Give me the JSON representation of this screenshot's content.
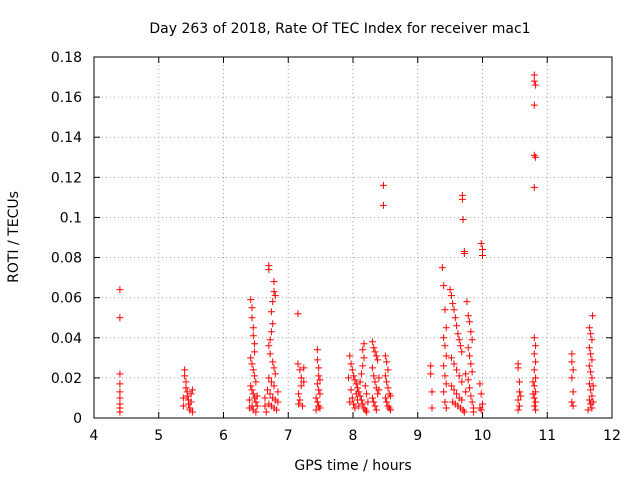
{
  "chart_data": {
    "type": "scatter",
    "title": "Day 263 of 2018, Rate Of TEC Index for receiver mac1",
    "xlabel": "GPS time / hours",
    "ylabel": "ROTI / TECUs",
    "xlim": [
      4,
      12
    ],
    "ylim": [
      0,
      0.18
    ],
    "xticks": [
      "4",
      "5",
      "6",
      "7",
      "8",
      "9",
      "10",
      "11",
      "12"
    ],
    "yticks": [
      "0",
      "0.02",
      "0.04",
      "0.06",
      "0.08",
      "0.1",
      "0.12",
      "0.14",
      "0.16",
      "0.18"
    ],
    "grid": true,
    "marker": "+",
    "color": "#ff0000",
    "series": [
      {
        "name": "ROTI",
        "points": [
          [
            4.4,
            0.064
          ],
          [
            4.4,
            0.05
          ],
          [
            4.4,
            0.022
          ],
          [
            4.4,
            0.017
          ],
          [
            4.4,
            0.013
          ],
          [
            4.4,
            0.01
          ],
          [
            4.4,
            0.007
          ],
          [
            4.4,
            0.005
          ],
          [
            4.4,
            0.003
          ],
          [
            5.4,
            0.024
          ],
          [
            5.4,
            0.021
          ],
          [
            5.42,
            0.018
          ],
          [
            5.42,
            0.015
          ],
          [
            5.44,
            0.013
          ],
          [
            5.44,
            0.011
          ],
          [
            5.46,
            0.009
          ],
          [
            5.46,
            0.007
          ],
          [
            5.48,
            0.005
          ],
          [
            5.48,
            0.004
          ],
          [
            5.5,
            0.012
          ],
          [
            5.5,
            0.008
          ],
          [
            5.38,
            0.01
          ],
          [
            5.38,
            0.006
          ],
          [
            5.52,
            0.014
          ],
          [
            5.52,
            0.003
          ],
          [
            6.42,
            0.059
          ],
          [
            6.44,
            0.055
          ],
          [
            6.44,
            0.05
          ],
          [
            6.46,
            0.045
          ],
          [
            6.46,
            0.041
          ],
          [
            6.48,
            0.037
          ],
          [
            6.48,
            0.033
          ],
          [
            6.42,
            0.03
          ],
          [
            6.44,
            0.027
          ],
          [
            6.46,
            0.024
          ],
          [
            6.48,
            0.021
          ],
          [
            6.5,
            0.018
          ],
          [
            6.42,
            0.016
          ],
          [
            6.44,
            0.014
          ],
          [
            6.46,
            0.012
          ],
          [
            6.48,
            0.01
          ],
          [
            6.5,
            0.008
          ],
          [
            6.44,
            0.006
          ],
          [
            6.46,
            0.004
          ],
          [
            6.5,
            0.003
          ],
          [
            6.52,
            0.011
          ],
          [
            6.52,
            0.006
          ],
          [
            6.4,
            0.009
          ],
          [
            6.4,
            0.005
          ],
          [
            6.7,
            0.076
          ],
          [
            6.7,
            0.074
          ],
          [
            6.78,
            0.068
          ],
          [
            6.78,
            0.063
          ],
          [
            6.8,
            0.061
          ],
          [
            6.76,
            0.058
          ],
          [
            6.74,
            0.053
          ],
          [
            6.76,
            0.047
          ],
          [
            6.74,
            0.043
          ],
          [
            6.72,
            0.039
          ],
          [
            6.7,
            0.036
          ],
          [
            6.72,
            0.032
          ],
          [
            6.76,
            0.028
          ],
          [
            6.78,
            0.025
          ],
          [
            6.8,
            0.022
          ],
          [
            6.7,
            0.02
          ],
          [
            6.74,
            0.018
          ],
          [
            6.78,
            0.016
          ],
          [
            6.68,
            0.014
          ],
          [
            6.72,
            0.012
          ],
          [
            6.76,
            0.01
          ],
          [
            6.8,
            0.009
          ],
          [
            6.7,
            0.007
          ],
          [
            6.74,
            0.006
          ],
          [
            6.78,
            0.005
          ],
          [
            6.82,
            0.004
          ],
          [
            6.66,
            0.003
          ],
          [
            6.84,
            0.013
          ],
          [
            6.84,
            0.008
          ],
          [
            6.64,
            0.01
          ],
          [
            6.64,
            0.006
          ],
          [
            7.15,
            0.052
          ],
          [
            7.15,
            0.027
          ],
          [
            7.18,
            0.024
          ],
          [
            7.2,
            0.02
          ],
          [
            7.2,
            0.016
          ],
          [
            7.16,
            0.012
          ],
          [
            7.18,
            0.009
          ],
          [
            7.16,
            0.007
          ],
          [
            7.22,
            0.006
          ],
          [
            7.24,
            0.025
          ],
          [
            7.24,
            0.018
          ],
          [
            7.45,
            0.034
          ],
          [
            7.45,
            0.029
          ],
          [
            7.47,
            0.025
          ],
          [
            7.47,
            0.021
          ],
          [
            7.49,
            0.019
          ],
          [
            7.45,
            0.017
          ],
          [
            7.47,
            0.014
          ],
          [
            7.49,
            0.012
          ],
          [
            7.43,
            0.01
          ],
          [
            7.45,
            0.008
          ],
          [
            7.47,
            0.006
          ],
          [
            7.49,
            0.005
          ],
          [
            7.43,
            0.004
          ],
          [
            7.95,
            0.031
          ],
          [
            7.97,
            0.027
          ],
          [
            7.99,
            0.024
          ],
          [
            8.01,
            0.021
          ],
          [
            8.03,
            0.019
          ],
          [
            8.05,
            0.017
          ],
          [
            8.07,
            0.015
          ],
          [
            8.09,
            0.013
          ],
          [
            8.11,
            0.011
          ],
          [
            8.13,
            0.009
          ],
          [
            8.15,
            0.007
          ],
          [
            8.17,
            0.005
          ],
          [
            8.19,
            0.004
          ],
          [
            8.21,
            0.003
          ],
          [
            7.97,
            0.014
          ],
          [
            7.99,
            0.01
          ],
          [
            8.01,
            0.007
          ],
          [
            8.03,
            0.005
          ],
          [
            8.05,
            0.012
          ],
          [
            8.07,
            0.009
          ],
          [
            8.09,
            0.006
          ],
          [
            8.11,
            0.018
          ],
          [
            8.13,
            0.022
          ],
          [
            8.15,
            0.026
          ],
          [
            8.17,
            0.03
          ],
          [
            8.17,
            0.037
          ],
          [
            8.15,
            0.034
          ],
          [
            8.19,
            0.016
          ],
          [
            8.21,
            0.012
          ],
          [
            7.95,
            0.008
          ],
          [
            7.93,
            0.02
          ],
          [
            8.23,
            0.008
          ],
          [
            8.3,
            0.038
          ],
          [
            8.32,
            0.035
          ],
          [
            8.34,
            0.033
          ],
          [
            8.36,
            0.031
          ],
          [
            8.38,
            0.029
          ],
          [
            8.3,
            0.025
          ],
          [
            8.32,
            0.021
          ],
          [
            8.34,
            0.018
          ],
          [
            8.36,
            0.015
          ],
          [
            8.38,
            0.012
          ],
          [
            8.3,
            0.01
          ],
          [
            8.32,
            0.008
          ],
          [
            8.34,
            0.006
          ],
          [
            8.36,
            0.004
          ],
          [
            8.4,
            0.02
          ],
          [
            8.4,
            0.014
          ],
          [
            8.47,
            0.116
          ],
          [
            8.47,
            0.106
          ],
          [
            8.5,
            0.031
          ],
          [
            8.52,
            0.028
          ],
          [
            8.54,
            0.024
          ],
          [
            8.5,
            0.021
          ],
          [
            8.52,
            0.018
          ],
          [
            8.54,
            0.015
          ],
          [
            8.56,
            0.012
          ],
          [
            8.5,
            0.01
          ],
          [
            8.52,
            0.008
          ],
          [
            8.54,
            0.006
          ],
          [
            8.56,
            0.005
          ],
          [
            8.58,
            0.004
          ],
          [
            8.58,
            0.011
          ],
          [
            9.2,
            0.026
          ],
          [
            9.2,
            0.022
          ],
          [
            9.22,
            0.013
          ],
          [
            9.22,
            0.005
          ],
          [
            9.38,
            0.075
          ],
          [
            9.4,
            0.066
          ],
          [
            9.42,
            0.054
          ],
          [
            9.44,
            0.045
          ],
          [
            9.4,
            0.04
          ],
          [
            9.42,
            0.036
          ],
          [
            9.44,
            0.031
          ],
          [
            9.4,
            0.026
          ],
          [
            9.42,
            0.021
          ],
          [
            9.44,
            0.017
          ],
          [
            9.4,
            0.013
          ],
          [
            9.42,
            0.008
          ],
          [
            9.44,
            0.005
          ],
          [
            9.5,
            0.064
          ],
          [
            9.52,
            0.061
          ],
          [
            9.54,
            0.057
          ],
          [
            9.56,
            0.054
          ],
          [
            9.58,
            0.05
          ],
          [
            9.6,
            0.046
          ],
          [
            9.62,
            0.042
          ],
          [
            9.64,
            0.039
          ],
          [
            9.66,
            0.036
          ],
          [
            9.68,
            0.033
          ],
          [
            9.52,
            0.03
          ],
          [
            9.56,
            0.027
          ],
          [
            9.6,
            0.024
          ],
          [
            9.64,
            0.021
          ],
          [
            9.68,
            0.018
          ],
          [
            9.52,
            0.016
          ],
          [
            9.56,
            0.014
          ],
          [
            9.6,
            0.012
          ],
          [
            9.64,
            0.01
          ],
          [
            9.68,
            0.009
          ],
          [
            9.54,
            0.008
          ],
          [
            9.58,
            0.007
          ],
          [
            9.62,
            0.006
          ],
          [
            9.66,
            0.005
          ],
          [
            9.7,
            0.004
          ],
          [
            9.72,
            0.003
          ],
          [
            9.74,
            0.013
          ],
          [
            9.74,
            0.022
          ],
          [
            9.69,
            0.111
          ],
          [
            9.69,
            0.109
          ],
          [
            9.7,
            0.099
          ],
          [
            9.72,
            0.083
          ],
          [
            9.72,
            0.082
          ],
          [
            9.76,
            0.058
          ],
          [
            9.78,
            0.051
          ],
          [
            9.8,
            0.048
          ],
          [
            9.82,
            0.043
          ],
          [
            9.84,
            0.039
          ],
          [
            9.78,
            0.035
          ],
          [
            9.8,
            0.031
          ],
          [
            9.82,
            0.027
          ],
          [
            9.84,
            0.023
          ],
          [
            9.78,
            0.019
          ],
          [
            9.8,
            0.015
          ],
          [
            9.82,
            0.011
          ],
          [
            9.84,
            0.008
          ],
          [
            9.86,
            0.005
          ],
          [
            9.86,
            0.003
          ],
          [
            9.98,
            0.087
          ],
          [
            10.0,
            0.084
          ],
          [
            10.0,
            0.081
          ],
          [
            9.96,
            0.017
          ],
          [
            9.98,
            0.012
          ],
          [
            10.0,
            0.007
          ],
          [
            9.96,
            0.005
          ],
          [
            9.98,
            0.004
          ],
          [
            10.55,
            0.027
          ],
          [
            10.55,
            0.025
          ],
          [
            10.57,
            0.018
          ],
          [
            10.57,
            0.013
          ],
          [
            10.55,
            0.009
          ],
          [
            10.57,
            0.006
          ],
          [
            10.55,
            0.004
          ],
          [
            10.59,
            0.011
          ],
          [
            10.8,
            0.171
          ],
          [
            10.8,
            0.168
          ],
          [
            10.82,
            0.166
          ],
          [
            10.8,
            0.156
          ],
          [
            10.8,
            0.131
          ],
          [
            10.82,
            0.13
          ],
          [
            10.8,
            0.115
          ],
          [
            10.8,
            0.04
          ],
          [
            10.82,
            0.036
          ],
          [
            10.8,
            0.032
          ],
          [
            10.82,
            0.028
          ],
          [
            10.8,
            0.024
          ],
          [
            10.82,
            0.02
          ],
          [
            10.8,
            0.016
          ],
          [
            10.82,
            0.013
          ],
          [
            10.8,
            0.01
          ],
          [
            10.82,
            0.008
          ],
          [
            10.8,
            0.006
          ],
          [
            10.82,
            0.004
          ],
          [
            10.78,
            0.018
          ],
          [
            10.78,
            0.012
          ],
          [
            11.38,
            0.032
          ],
          [
            11.38,
            0.028
          ],
          [
            11.4,
            0.024
          ],
          [
            11.38,
            0.02
          ],
          [
            11.4,
            0.013
          ],
          [
            11.38,
            0.008
          ],
          [
            11.4,
            0.006
          ],
          [
            11.65,
            0.045
          ],
          [
            11.67,
            0.042
          ],
          [
            11.69,
            0.039
          ],
          [
            11.7,
            0.051
          ],
          [
            11.65,
            0.035
          ],
          [
            11.67,
            0.032
          ],
          [
            11.69,
            0.029
          ],
          [
            11.65,
            0.026
          ],
          [
            11.67,
            0.023
          ],
          [
            11.69,
            0.02
          ],
          [
            11.65,
            0.017
          ],
          [
            11.67,
            0.014
          ],
          [
            11.69,
            0.011
          ],
          [
            11.65,
            0.009
          ],
          [
            11.67,
            0.007
          ],
          [
            11.69,
            0.005
          ],
          [
            11.63,
            0.004
          ],
          [
            11.71,
            0.016
          ],
          [
            11.71,
            0.008
          ]
        ]
      }
    ]
  }
}
